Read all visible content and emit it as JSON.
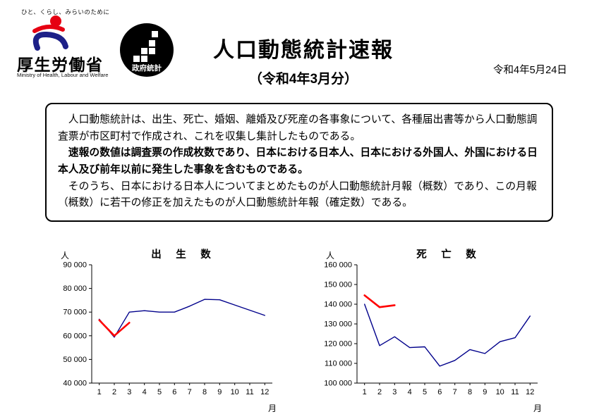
{
  "header": {
    "tagline": "ひと、くらし、みらいのために",
    "ministry_name": "厚生労働省",
    "ministry_name_en": "Ministry of Health, Labour and Welfare",
    "estat_label": "政府統計",
    "title": "人口動態統計速報",
    "subtitle": "（令和4年3月分）",
    "date": "令和4年5月24日"
  },
  "summary_box": {
    "paragraph1": "　人口動態統計は、出生、死亡、婚姻、離婚及び死産の各事象について、各種届出書等から人口動態調査票が市区町村で作成され、これを収集し集計したものである。",
    "paragraph2": "　速報の数値は調査票の作成枚数であり、日本における日本人、日本における外国人、外国における日本人及び前年以前に発生した事象を含むものである。",
    "paragraph3": "　そのうち、日本における日本人についてまとめたものが人口動態統計月報（概数）であり、この月報（概数）に若干の修正を加えたものが人口動態統計年報（確定数）である。"
  },
  "colors": {
    "line_blue": "#00008b",
    "line_red": "#ff0000",
    "logo_red": "#e60012",
    "logo_blue": "#1d2088",
    "estat_bg": "#000000"
  },
  "chart_data": [
    {
      "type": "line",
      "title": "出　生　数",
      "unit": "人",
      "xlabel": "月",
      "x": [
        "1",
        "2",
        "3",
        "4",
        "5",
        "6",
        "7",
        "8",
        "9",
        "10",
        "11",
        "12"
      ],
      "ylim": [
        40000,
        90000
      ],
      "ytick_step": 10000,
      "grid": false,
      "legend": "none",
      "series": [
        {
          "name": "blue-line",
          "color": "#00008b",
          "values": [
            67000,
            59400,
            70000,
            70600,
            70000,
            70000,
            72500,
            75400,
            75200,
            73000,
            70800,
            68600
          ]
        },
        {
          "name": "red-line",
          "color": "#ff0000",
          "values": [
            66600,
            60000,
            65500
          ]
        }
      ]
    },
    {
      "type": "line",
      "title": "死　亡　数",
      "unit": "人",
      "xlabel": "月",
      "x": [
        "1",
        "2",
        "3",
        "4",
        "5",
        "6",
        "7",
        "8",
        "9",
        "10",
        "11",
        "12"
      ],
      "ylim": [
        100000,
        160000
      ],
      "ytick_step": 10000,
      "grid": false,
      "legend": "none",
      "series": [
        {
          "name": "blue-line",
          "color": "#00008b",
          "values": [
            140000,
            119000,
            123500,
            118000,
            118400,
            108600,
            111500,
            117000,
            115000,
            121000,
            123000,
            134000
          ]
        },
        {
          "name": "red-line",
          "color": "#ff0000",
          "values": [
            144500,
            138500,
            139500
          ]
        }
      ]
    }
  ]
}
